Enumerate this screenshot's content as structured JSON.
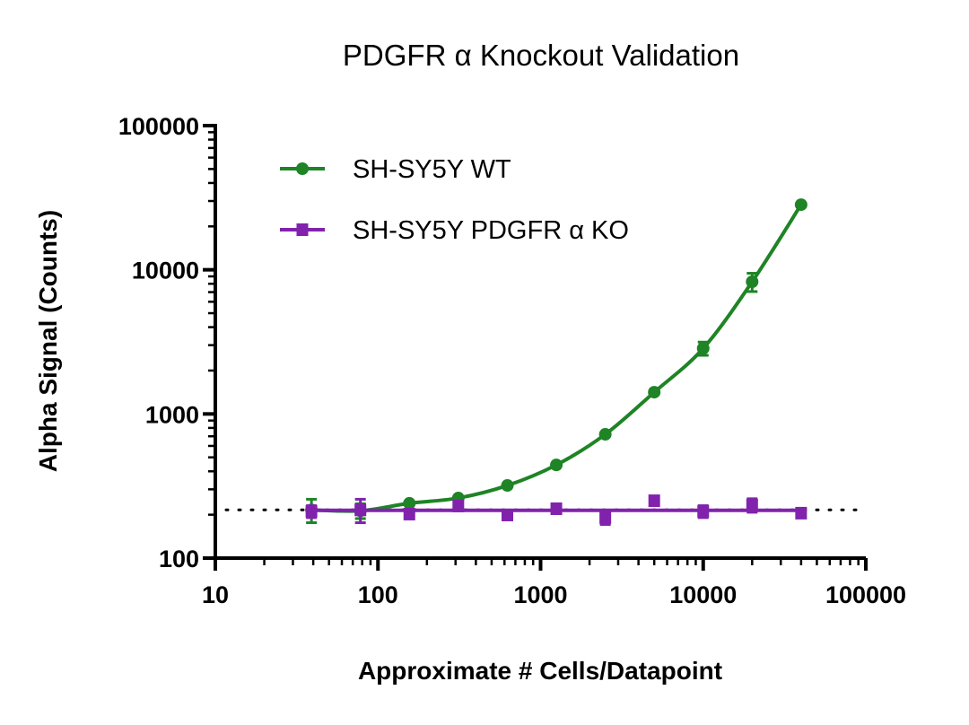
{
  "chart_data": {
    "type": "line",
    "title": "PDGFR α Knockout Validation",
    "xlabel": "Approximate # Cells/Datapoint",
    "ylabel": "Alpha Signal (Counts)",
    "xscale": "log",
    "yscale": "log",
    "xlim": [
      10,
      100000
    ],
    "ylim": [
      100,
      100000
    ],
    "xticks": [
      "10",
      "100",
      "1000",
      "10000",
      "100000"
    ],
    "yticks": [
      "100",
      "1000",
      "10000",
      "100000"
    ],
    "grid": false,
    "legend_position": "top-left",
    "baseline": 216,
    "x": [
      39,
      78,
      156,
      312,
      625,
      1250,
      2500,
      5000,
      10000,
      20000,
      40000
    ],
    "series": [
      {
        "name": "SH-SY5Y WT",
        "color": "#1e8425",
        "marker": "circle",
        "fit": "curve",
        "values": [
          216,
          213,
          240,
          261,
          319,
          443,
          722,
          1415,
          2850,
          8260,
          28300
        ],
        "errors": [
          40,
          25,
          5,
          5,
          5,
          10,
          20,
          40,
          300,
          1200,
          500
        ]
      },
      {
        "name": "SH-SY5Y PDGFR α KO",
        "color": "#8122ad",
        "marker": "square",
        "fit": "flat",
        "values": [
          211,
          216,
          202,
          230,
          199,
          220,
          191,
          250,
          211,
          233,
          205
        ],
        "errors": [
          20,
          40,
          10,
          15,
          8,
          8,
          20,
          15,
          20,
          25,
          8
        ]
      }
    ]
  }
}
